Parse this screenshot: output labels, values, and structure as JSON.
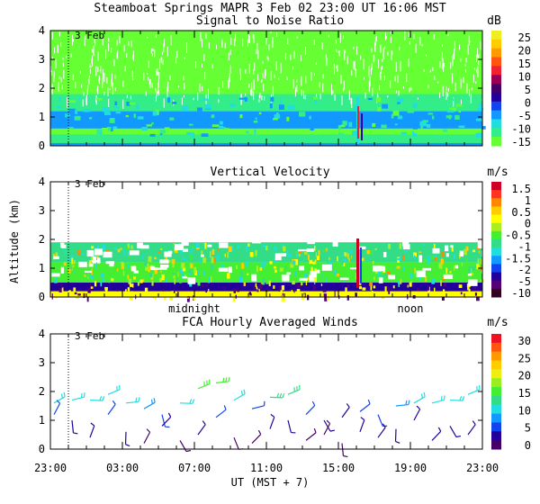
{
  "header": {
    "title": "Steamboat Springs  MAPR  3 Feb 02  23:00 UT  16:06  MST"
  },
  "colors": {
    "scale_snr": [
      "#66ff33",
      "#33ee88",
      "#22dddd",
      "#1199ff",
      "#1144ee",
      "#220099",
      "#440066",
      "#990055",
      "#ee2233",
      "#ff5511",
      "#ff9900",
      "#ffcc00",
      "#eeee22"
    ],
    "scale_vv": [
      "#330022",
      "#550077",
      "#220099",
      "#1144ee",
      "#1199ff",
      "#22dddd",
      "#33dd88",
      "#44ee33",
      "#aaee22",
      "#ffff00",
      "#ffcc00",
      "#ff8800",
      "#ff3322",
      "#cc0022"
    ],
    "scale_wind": [
      "#440066",
      "#220099",
      "#1144ee",
      "#1199ff",
      "#22dddd",
      "#33dd88",
      "#44ee33",
      "#99ee22",
      "#eeee11",
      "#ffcc00",
      "#ff9900",
      "#ff5511",
      "#ee1122"
    ]
  },
  "chart_data": [
    {
      "type": "heatmap",
      "name": "snr",
      "title": "Signal to Noise Ratio",
      "unit": "dB",
      "ylabel": "",
      "ylim": [
        0,
        4
      ],
      "yticks": [
        "0",
        "1",
        "2",
        "3",
        "4"
      ],
      "colorbar_labels": [
        "25",
        "20",
        "15",
        "10",
        "5",
        "0",
        "-5",
        "-10",
        "-15"
      ],
      "day_label": "3 Feb",
      "xlim_hours": [
        0,
        24
      ],
      "day_boundary_hour": 1,
      "rows": [
        {
          "y": [
            0.0,
            0.1
          ],
          "value": -5
        },
        {
          "y": [
            0.1,
            0.4
          ],
          "value": -10
        },
        {
          "y": [
            0.4,
            0.6
          ],
          "value": -12
        },
        {
          "y": [
            0.6,
            1.2
          ],
          "value": -5
        },
        {
          "y": [
            1.2,
            1.8
          ],
          "value": -10
        },
        {
          "y": [
            1.8,
            2.2
          ],
          "value": -14
        },
        {
          "y": [
            2.2,
            4.0
          ],
          "value": -15
        }
      ]
    },
    {
      "type": "heatmap",
      "name": "vertical_velocity",
      "title": "Vertical Velocity",
      "unit": "m/s",
      "ylabel": "Altitude (km)",
      "ylim": [
        0,
        4
      ],
      "yticks": [
        "0",
        "1",
        "2",
        "3",
        "4"
      ],
      "colorbar_labels": [
        "1.5",
        "1",
        "0.5",
        "0",
        "-0.5",
        "-1",
        "-1.5",
        "-2",
        "-5",
        "-10"
      ],
      "day_label": "3 Feb",
      "xlim_hours": [
        0,
        24
      ],
      "day_boundary_hour": 1,
      "extra_xlabels": [
        {
          "hour": 8,
          "text": "midnight"
        },
        {
          "hour": 20,
          "text": "noon"
        }
      ],
      "rows": [
        {
          "y": [
            0.0,
            0.2
          ],
          "value": 0.5
        },
        {
          "y": [
            0.2,
            0.5
          ],
          "value": -3
        },
        {
          "y": [
            0.5,
            1.2
          ],
          "value": 0
        },
        {
          "y": [
            1.2,
            1.9
          ],
          "value": -0.3
        }
      ]
    },
    {
      "type": "barbs",
      "name": "fca_winds",
      "title": "FCA Hourly Averaged Winds",
      "unit": "m/s",
      "ylabel": "",
      "ylim": [
        0,
        4
      ],
      "yticks": [
        "0",
        "1",
        "2",
        "3",
        "4"
      ],
      "colorbar_labels": [
        "30",
        "25",
        "20",
        "15",
        "10",
        "5",
        "0"
      ],
      "day_label": "3 Feb",
      "xlim_hours": [
        0,
        24
      ],
      "day_boundary_hour": 1,
      "xlabel": "UT  (MST + 7)",
      "xticks": [
        "23:00",
        "03:00",
        "07:00",
        "11:00",
        "15:00",
        "19:00",
        "23:00"
      ],
      "winds": [
        {
          "h": 0.2,
          "alt": 1.6,
          "spd": 10
        },
        {
          "h": 0.2,
          "alt": 1.2,
          "spd": 5
        },
        {
          "h": 1.2,
          "alt": 1.7,
          "spd": 11
        },
        {
          "h": 1.2,
          "alt": 1.0,
          "spd": 4
        },
        {
          "h": 2.2,
          "alt": 1.7,
          "spd": 11
        },
        {
          "h": 2.2,
          "alt": 0.4,
          "spd": 3
        },
        {
          "h": 3.2,
          "alt": 1.9,
          "spd": 12
        },
        {
          "h": 3.2,
          "alt": 1.2,
          "spd": 5
        },
        {
          "h": 4.2,
          "alt": 1.6,
          "spd": 10
        },
        {
          "h": 4.2,
          "alt": 0.6,
          "spd": 3
        },
        {
          "h": 5.2,
          "alt": 1.4,
          "spd": 8
        },
        {
          "h": 5.2,
          "alt": 0.2,
          "spd": 2
        },
        {
          "h": 6.2,
          "alt": 1.2,
          "spd": 6
        },
        {
          "h": 6.2,
          "alt": 0.8,
          "spd": 3
        },
        {
          "h": 7.2,
          "alt": 1.6,
          "spd": 10
        },
        {
          "h": 7.2,
          "alt": 0.3,
          "spd": 2
        },
        {
          "h": 8.2,
          "alt": 2.1,
          "spd": 15
        },
        {
          "h": 8.2,
          "alt": 0.5,
          "spd": 3
        },
        {
          "h": 9.2,
          "alt": 2.3,
          "spd": 16
        },
        {
          "h": 9.2,
          "alt": 1.1,
          "spd": 5
        },
        {
          "h": 10.2,
          "alt": 1.7,
          "spd": 10
        },
        {
          "h": 10.2,
          "alt": 0.4,
          "spd": 2
        },
        {
          "h": 11.2,
          "alt": 1.4,
          "spd": 7
        },
        {
          "h": 11.2,
          "alt": 0.2,
          "spd": 2
        },
        {
          "h": 12.2,
          "alt": 1.8,
          "spd": 13
        },
        {
          "h": 12.2,
          "alt": 0.7,
          "spd": 3
        },
        {
          "h": 13.2,
          "alt": 1.9,
          "spd": 14
        },
        {
          "h": 13.2,
          "alt": 1.0,
          "spd": 4
        },
        {
          "h": 14.2,
          "alt": 1.2,
          "spd": 5
        },
        {
          "h": 14.2,
          "alt": 0.3,
          "spd": 2
        },
        {
          "h": 15.2,
          "alt": 1.0,
          "spd": 4
        },
        {
          "h": 15.2,
          "alt": 0.5,
          "spd": 2
        },
        {
          "h": 16.2,
          "alt": 1.1,
          "spd": 4
        },
        {
          "h": 16.2,
          "alt": 0.2,
          "spd": 2
        },
        {
          "h": 17.2,
          "alt": 1.3,
          "spd": 5
        },
        {
          "h": 17.2,
          "alt": 0.6,
          "spd": 3
        },
        {
          "h": 18.2,
          "alt": 1.2,
          "spd": 5
        },
        {
          "h": 18.2,
          "alt": 0.4,
          "spd": 3
        },
        {
          "h": 19.2,
          "alt": 1.5,
          "spd": 8
        },
        {
          "h": 19.2,
          "alt": 0.7,
          "spd": 3
        },
        {
          "h": 20.2,
          "alt": 1.6,
          "spd": 10
        },
        {
          "h": 20.2,
          "alt": 1.0,
          "spd": 4
        },
        {
          "h": 21.2,
          "alt": 1.6,
          "spd": 11
        },
        {
          "h": 21.2,
          "alt": 0.3,
          "spd": 3
        },
        {
          "h": 22.2,
          "alt": 1.7,
          "spd": 11
        },
        {
          "h": 22.2,
          "alt": 0.8,
          "spd": 4
        },
        {
          "h": 23.2,
          "alt": 1.9,
          "spd": 12
        },
        {
          "h": 23.2,
          "alt": 0.5,
          "spd": 3
        }
      ]
    }
  ]
}
